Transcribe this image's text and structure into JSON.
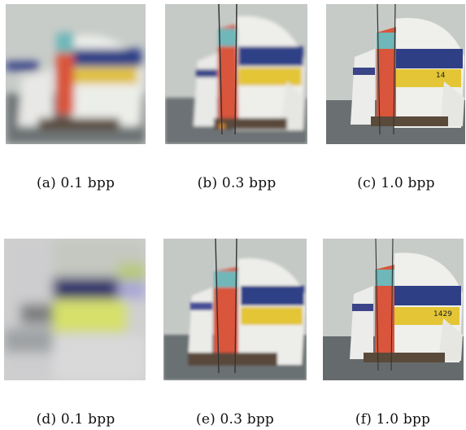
{
  "figure": {
    "panels": [
      {
        "caption": "(a) 0.1 bpp",
        "quality": "very-blurry"
      },
      {
        "caption": "(b) 0.3 bpp",
        "quality": "blurry"
      },
      {
        "caption": "(c) 1.0 bpp",
        "quality": "sharp"
      },
      {
        "caption": "(d) 0.1 bpp",
        "quality": "blocky"
      },
      {
        "caption": "(e) 0.3 bpp",
        "quality": "medium"
      },
      {
        "caption": "(f) 1.0 bpp",
        "quality": "sharp"
      }
    ]
  },
  "colors": {
    "sky": "#c9ccc6",
    "water": "#6f7577",
    "sail_white": "#eeeeea",
    "stripe_blue": "#2f3f86",
    "stripe_yellow": "#e3c536",
    "stripe_red": "#d9553b",
    "stripe_teal": "#6fb7b9"
  }
}
